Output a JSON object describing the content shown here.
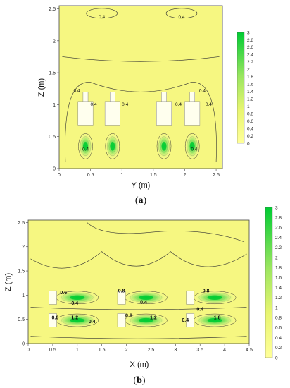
{
  "colors": {
    "low": "#ffff99",
    "high": "#00cc33",
    "contour": "#333333",
    "obstacle": "#ffffee"
  },
  "chart_data": [
    {
      "type": "heatmap",
      "caption": {
        "open": "(",
        "letter": "a",
        "close": ")"
      },
      "xlabel": "Y (m)",
      "ylabel": "Z (m)",
      "xlim": [
        0,
        2.6
      ],
      "ylim": [
        0,
        2.55
      ],
      "x_ticks": [
        "0",
        "0.5",
        "1",
        "1.5",
        "2",
        "2.5"
      ],
      "y_ticks": [
        "0",
        "0.5",
        "1",
        "1.5",
        "2",
        "2.5"
      ],
      "colorbar_ticks": [
        "0",
        "0.2",
        "0.4",
        "0.6",
        "0.8",
        "1",
        "1.2",
        "1.4",
        "1.6",
        "1.8",
        "2",
        "2.2",
        "2.4",
        "2.6",
        "2.8",
        "3"
      ],
      "colorbar_range": [
        0,
        3
      ],
      "contour_labels": [
        {
          "text": "0.4",
          "x": 0.68,
          "y": 2.35
        },
        {
          "text": "0.4",
          "x": 1.95,
          "y": 2.35
        },
        {
          "text": "0.4",
          "x": 0.28,
          "y": 1.2
        },
        {
          "text": "0.4",
          "x": 2.28,
          "y": 1.2
        },
        {
          "text": "0.4",
          "x": 0.55,
          "y": 0.98
        },
        {
          "text": "0.4",
          "x": 1.05,
          "y": 0.98
        },
        {
          "text": "0.4",
          "x": 1.9,
          "y": 0.98
        },
        {
          "text": "0.4",
          "x": 2.38,
          "y": 0.98
        },
        {
          "text": "0.4",
          "x": 0.42,
          "y": 0.28
        },
        {
          "text": "0.4",
          "x": 2.15,
          "y": 0.28
        }
      ],
      "sources": [
        {
          "x": 0.42,
          "y": 0.35,
          "peak": 2.0
        },
        {
          "x": 0.85,
          "y": 0.35,
          "peak": 2.0
        },
        {
          "x": 1.67,
          "y": 0.35,
          "peak": 2.0
        },
        {
          "x": 2.12,
          "y": 0.35,
          "peak": 2.0
        }
      ]
    },
    {
      "type": "heatmap",
      "caption": {
        "open": "(",
        "letter": "b",
        "close": ")"
      },
      "xlabel": "X (m)",
      "ylabel": "Z (m)",
      "xlim": [
        0,
        4.5
      ],
      "ylim": [
        0,
        2.55
      ],
      "x_ticks": [
        "0",
        "0.5",
        "1",
        "1.5",
        "2",
        "2.5",
        "3",
        "3.5",
        "4",
        "4.5"
      ],
      "y_ticks": [
        "0",
        "0.5",
        "1",
        "1.5",
        "2",
        "2.5"
      ],
      "colorbar_ticks": [
        "0",
        "0.2",
        "0.4",
        "0.6",
        "0.8",
        "1",
        "1.2",
        "1.4",
        "1.6",
        "1.8",
        "2",
        "2.2",
        "2.4",
        "2.6",
        "2.8",
        "3"
      ],
      "colorbar_range": [
        0,
        3
      ],
      "contour_labels": [
        {
          "text": "0.6",
          "x": 0.72,
          "y": 1.02
        },
        {
          "text": "0.8",
          "x": 1.9,
          "y": 1.06
        },
        {
          "text": "0.8",
          "x": 3.62,
          "y": 1.06
        },
        {
          "text": "0.4",
          "x": 0.95,
          "y": 0.8
        },
        {
          "text": "0.4",
          "x": 2.35,
          "y": 0.82
        },
        {
          "text": "0.4",
          "x": 3.5,
          "y": 0.68
        },
        {
          "text": "0.6",
          "x": 0.55,
          "y": 0.5
        },
        {
          "text": "1.2",
          "x": 0.95,
          "y": 0.5
        },
        {
          "text": "0.4",
          "x": 1.3,
          "y": 0.42
        },
        {
          "text": "0.8",
          "x": 2.05,
          "y": 0.55
        },
        {
          "text": "1.2",
          "x": 2.55,
          "y": 0.5
        },
        {
          "text": "0.4",
          "x": 3.2,
          "y": 0.45
        },
        {
          "text": "1.8",
          "x": 3.85,
          "y": 0.5
        }
      ],
      "sources": [
        {
          "x": 1.0,
          "y": 0.95,
          "peak": 2.6
        },
        {
          "x": 2.4,
          "y": 0.95,
          "peak": 2.6
        },
        {
          "x": 3.8,
          "y": 0.95,
          "peak": 2.6
        },
        {
          "x": 1.0,
          "y": 0.48,
          "peak": 2.8
        },
        {
          "x": 2.4,
          "y": 0.48,
          "peak": 2.8
        },
        {
          "x": 3.8,
          "y": 0.48,
          "peak": 2.8
        }
      ]
    }
  ]
}
